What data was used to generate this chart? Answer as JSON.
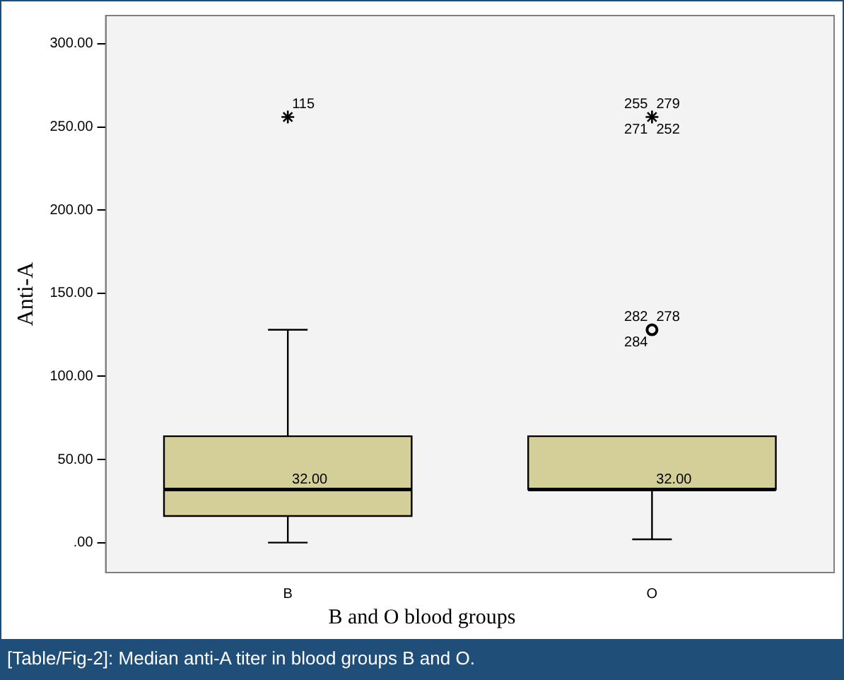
{
  "chart_data": {
    "type": "box",
    "categories": [
      "B",
      "O"
    ],
    "xlabel": "B and O blood groups",
    "ylabel": "Anti-A",
    "color": "#d4cf99",
    "boxes": [
      {
        "low": 0,
        "q1": 16,
        "median": 32,
        "q3": 64,
        "high": 128
      },
      {
        "low": 2,
        "q1": 32,
        "median": 32,
        "q3": 64,
        "high": 64
      }
    ],
    "series": [
      {
        "type": "scatter",
        "marker": "cross",
        "color": "#000000",
        "x": [
          "B",
          "O"
        ],
        "values": [
          256,
          256
        ]
      },
      {
        "type": "scatter",
        "marker": "circle",
        "color": "#000000",
        "x": [
          "O"
        ],
        "values": [
          128
        ]
      }
    ],
    "ylim": [
      -18,
      317
    ],
    "yticks": [
      {
        "value": 0,
        "label": ".00"
      },
      {
        "value": 50,
        "label": "50.00"
      },
      {
        "value": 100,
        "label": "100.00"
      },
      {
        "value": 150,
        "label": "150.00"
      },
      {
        "value": 200,
        "label": "200.00"
      },
      {
        "value": 250,
        "label": "250.00"
      },
      {
        "value": 300,
        "label": "300.00"
      }
    ],
    "grid": false,
    "legend": false,
    "annotations": [
      {
        "text": "32.00",
        "x": "B",
        "y": 32
      },
      {
        "text": "32.00",
        "x": "O",
        "y": 32
      },
      {
        "text": "115",
        "x": "B",
        "y": 256
      },
      {
        "text": "255",
        "x": "O",
        "y": 256
      },
      {
        "text": "279",
        "x": "O",
        "y": 256
      },
      {
        "text": "271",
        "x": "O",
        "y": 256
      },
      {
        "text": "252",
        "x": "O",
        "y": 256
      },
      {
        "text": "282",
        "x": "O",
        "y": 128
      },
      {
        "text": "278",
        "x": "O",
        "y": 128
      },
      {
        "text": "284",
        "x": "O",
        "y": 128
      },
      "[Table/Fig-2]: Median anti-A titer in blood groups B and O."
    ]
  }
}
